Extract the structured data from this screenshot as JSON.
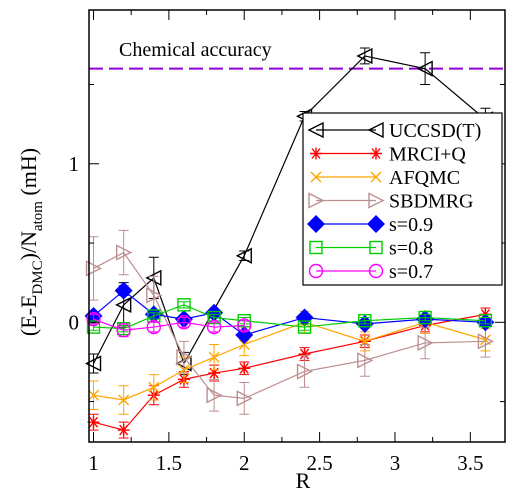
{
  "chart_data": {
    "type": "line",
    "xlabel": "R",
    "ylabel_main": "(E-E",
    "ylabel_sub1": "DMC",
    "ylabel_mid": ")/N",
    "ylabel_sub2": "atom",
    "ylabel_unit": " (mH)",
    "xlim": [
      0.97,
      3.73
    ],
    "ylim": [
      -0.755,
      1.97
    ],
    "x_ticks": [
      1,
      1.5,
      2,
      2.5,
      3,
      3.5
    ],
    "x_tick_labels": [
      "1",
      "1.5",
      "2",
      "2.5",
      "3",
      "3.5"
    ],
    "y_ticks": [
      0,
      1
    ],
    "y_tick_labels": [
      "0",
      "1"
    ],
    "legend_position": "right",
    "reference_line": {
      "label": "Chemical accuracy",
      "y": 1.6,
      "color": "#9400d3"
    },
    "series": [
      {
        "name": "UCCSD(T)",
        "color": "#000000",
        "marker": "tri-left",
        "filled": false,
        "x": [
          1.0,
          1.2,
          1.4,
          1.6,
          2.0,
          2.4,
          2.8,
          3.2,
          3.6
        ],
        "y": [
          -0.26,
          0.11,
          0.28,
          -0.26,
          0.42,
          1.3,
          1.68,
          1.6,
          1.28
        ],
        "err": [
          0.06,
          0.14,
          0.13,
          0.07,
          0.03,
          0.03,
          0.05,
          0.1,
          0.07
        ]
      },
      {
        "name": "MRCI+Q",
        "color": "#ff0000",
        "marker": "star",
        "filled": false,
        "x": [
          1.0,
          1.2,
          1.4,
          1.6,
          1.8,
          2.0,
          2.4,
          2.8,
          3.2,
          3.6
        ],
        "y": [
          -0.63,
          -0.68,
          -0.46,
          -0.36,
          -0.32,
          -0.29,
          -0.2,
          -0.12,
          -0.02,
          0.05
        ],
        "err": [
          0.05,
          0.05,
          0.06,
          0.05,
          0.05,
          0.04,
          0.04,
          0.04,
          0.04,
          0.04
        ]
      },
      {
        "name": "AFQMC",
        "color": "#ffa500",
        "marker": "cross",
        "filled": false,
        "x": [
          1.0,
          1.2,
          1.4,
          1.6,
          1.8,
          2.0,
          2.4,
          2.8,
          3.2,
          3.6
        ],
        "y": [
          -0.46,
          -0.49,
          -0.41,
          -0.3,
          -0.22,
          -0.14,
          0.0,
          -0.12,
          0.0,
          -0.11
        ],
        "err": [
          0.09,
          0.09,
          0.08,
          0.08,
          0.08,
          0.07,
          0.07,
          0.06,
          0.07,
          0.07
        ]
      },
      {
        "name": "SBDMRG",
        "color": "#bc8f8f",
        "marker": "tri-right",
        "filled": false,
        "x": [
          1.0,
          1.2,
          1.4,
          1.6,
          1.8,
          2.0,
          2.4,
          2.8,
          3.2,
          3.6
        ],
        "y": [
          0.34,
          0.44,
          0.17,
          -0.22,
          -0.46,
          -0.48,
          -0.31,
          -0.24,
          -0.13,
          -0.12
        ],
        "err": [
          0.2,
          0.14,
          0.12,
          0.1,
          0.1,
          0.1,
          0.1,
          0.1,
          0.1,
          0.1
        ]
      },
      {
        "name": "s=0.9",
        "color": "#0000ff",
        "marker": "diamond",
        "filled": true,
        "x": [
          1.0,
          1.2,
          1.4,
          1.6,
          1.8,
          2.0,
          2.4,
          2.8,
          3.2,
          3.6
        ],
        "y": [
          0.04,
          0.2,
          0.05,
          0.02,
          0.06,
          -0.08,
          0.03,
          -0.01,
          0.02,
          0.0
        ],
        "err": [
          0.02,
          0.03,
          0.02,
          0.02,
          0.02,
          0.02,
          0.02,
          0.02,
          0.02,
          0.02
        ]
      },
      {
        "name": "s=0.8",
        "color": "#00cc00",
        "marker": "square",
        "filled": false,
        "x": [
          1.0,
          1.2,
          1.4,
          1.6,
          1.8,
          2.0,
          2.4,
          2.8,
          3.2,
          3.6
        ],
        "y": [
          -0.03,
          -0.04,
          0.04,
          0.11,
          0.03,
          0.01,
          -0.03,
          0.01,
          0.03,
          0.01
        ],
        "err": [
          0.02,
          0.02,
          0.02,
          0.02,
          0.02,
          0.02,
          0.02,
          0.02,
          0.02,
          0.02
        ]
      },
      {
        "name": "s=0.7",
        "color": "#ff00ff",
        "marker": "circle",
        "filled": false,
        "x": [
          1.0,
          1.2,
          1.4,
          1.6,
          1.8,
          2.0
        ],
        "y": [
          0.02,
          -0.05,
          -0.03,
          0.0,
          -0.03,
          -0.02
        ],
        "err": [
          0.03,
          0.04,
          0.03,
          0.03,
          0.03,
          0.03
        ]
      }
    ]
  }
}
